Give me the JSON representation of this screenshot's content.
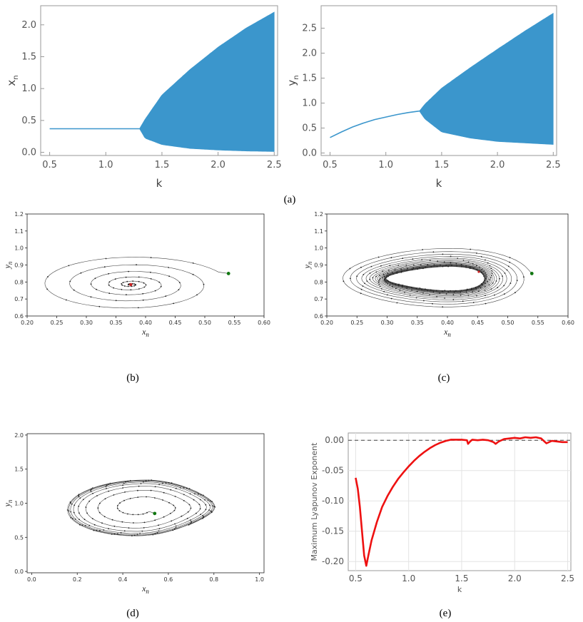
{
  "chart_data": [
    {
      "id": "a1",
      "type": "bifurcation",
      "xlabel": "k",
      "ylabel": "x",
      "ylabel_sub": "n",
      "xlim": [
        0.42,
        2.53
      ],
      "ylim": [
        -0.05,
        2.3
      ],
      "xticks": [
        "0.5",
        "1.0",
        "1.5",
        "2.0",
        "2.5"
      ],
      "yticks": [
        "0.0",
        "0.5",
        "1.0",
        "1.5",
        "2.0"
      ],
      "k_bifurcation": 1.3,
      "fixed_branch": [
        [
          0.5,
          0.37
        ],
        [
          1.3,
          0.37
        ]
      ],
      "band_upper": [
        [
          1.3,
          0.37
        ],
        [
          1.35,
          0.52
        ],
        [
          1.5,
          0.9
        ],
        [
          1.75,
          1.3
        ],
        [
          2.0,
          1.65
        ],
        [
          2.25,
          1.95
        ],
        [
          2.5,
          2.2
        ]
      ],
      "band_lower": [
        [
          1.3,
          0.37
        ],
        [
          1.35,
          0.22
        ],
        [
          1.5,
          0.12
        ],
        [
          1.75,
          0.06
        ],
        [
          2.0,
          0.035
        ],
        [
          2.25,
          0.02
        ],
        [
          2.5,
          0.012
        ]
      ],
      "color": "#3b96cc"
    },
    {
      "id": "a2",
      "type": "bifurcation",
      "xlabel": "k",
      "ylabel": "y",
      "ylabel_sub": "n",
      "xlim": [
        0.42,
        2.53
      ],
      "ylim": [
        -0.05,
        2.95
      ],
      "xticks": [
        "0.5",
        "1.0",
        "1.5",
        "2.0",
        "2.5"
      ],
      "yticks": [
        "0.0",
        "0.5",
        "1.0",
        "1.5",
        "2.0",
        "2.5"
      ],
      "k_bifurcation": 1.3,
      "fixed_branch": [
        [
          0.5,
          0.31
        ],
        [
          0.6,
          0.42
        ],
        [
          0.7,
          0.52
        ],
        [
          0.8,
          0.6
        ],
        [
          0.9,
          0.67
        ],
        [
          1.0,
          0.72
        ],
        [
          1.1,
          0.77
        ],
        [
          1.2,
          0.81
        ],
        [
          1.3,
          0.84
        ]
      ],
      "band_upper": [
        [
          1.3,
          0.84
        ],
        [
          1.35,
          0.98
        ],
        [
          1.5,
          1.3
        ],
        [
          1.75,
          1.7
        ],
        [
          2.0,
          2.08
        ],
        [
          2.25,
          2.45
        ],
        [
          2.5,
          2.8
        ]
      ],
      "band_lower": [
        [
          1.3,
          0.84
        ],
        [
          1.35,
          0.68
        ],
        [
          1.5,
          0.42
        ],
        [
          1.75,
          0.3
        ],
        [
          2.0,
          0.23
        ],
        [
          2.25,
          0.2
        ],
        [
          2.5,
          0.17
        ]
      ],
      "color": "#3b96cc"
    },
    {
      "id": "b",
      "type": "phase-orbit",
      "behavior": "stable spiral",
      "xlabel": "x",
      "ylabel": "y",
      "xlim": [
        0.2,
        0.6
      ],
      "ylim": [
        0.6,
        1.2
      ],
      "xticks": [
        "0.20",
        "0.25",
        "0.30",
        "0.35",
        "0.40",
        "0.45",
        "0.50",
        "0.55",
        "0.60"
      ],
      "yticks": [
        "0.6",
        "0.7",
        "0.8",
        "0.9",
        "1.0",
        "1.1",
        "1.2"
      ],
      "start": [
        0.54,
        0.85
      ],
      "fixed_point": [
        0.375,
        0.785
      ],
      "rx_start": 0.165,
      "ry_start": 0.17,
      "rx_end": 0.004,
      "ry_end": 0.003,
      "turns": 5.5
    },
    {
      "id": "c",
      "type": "phase-orbit",
      "behavior": "converging to limit cycle (outer)",
      "xlabel": "x",
      "ylabel": "y",
      "xlim": [
        0.2,
        0.6
      ],
      "ylim": [
        0.6,
        1.2
      ],
      "xticks": [
        "0.20",
        "0.25",
        "0.30",
        "0.35",
        "0.40",
        "0.45",
        "0.50",
        "0.55",
        "0.60"
      ],
      "yticks": [
        "0.6",
        "0.7",
        "0.8",
        "0.9",
        "1.0",
        "1.1",
        "1.2"
      ],
      "start": [
        0.54,
        0.85
      ],
      "center": [
        0.38,
        0.82
      ],
      "rx_start": 0.16,
      "ry_start": 0.18,
      "rx_end": 0.078,
      "ry_end": 0.062,
      "turns": 18
    },
    {
      "id": "d",
      "type": "phase-orbit",
      "behavior": "outward spiral to limit cycle",
      "xlabel": "x",
      "ylabel": "y",
      "xlim": [
        -0.02,
        1.02
      ],
      "ylim": [
        -0.02,
        2.02
      ],
      "xticks": [
        "0.0",
        "0.2",
        "0.4",
        "0.6",
        "0.8",
        "1.0"
      ],
      "yticks": [
        "0.0",
        "0.5",
        "1.0",
        "1.5",
        "2.0"
      ],
      "start": [
        0.54,
        0.85
      ],
      "center": [
        0.45,
        0.9
      ],
      "turns": 8
    },
    {
      "id": "e",
      "type": "line",
      "xlabel": "k",
      "ylabel": "Maximum Lyapunov Exponent",
      "xlim": [
        0.43,
        2.53
      ],
      "ylim": [
        -0.215,
        0.012
      ],
      "xticks": [
        "0.5",
        "1.0",
        "1.5",
        "2.0",
        "2.5"
      ],
      "yticks": [
        "0.00",
        "-0.05",
        "-0.10",
        "-0.15",
        "-0.20"
      ],
      "x": [
        0.5,
        0.52,
        0.54,
        0.56,
        0.58,
        0.6,
        0.62,
        0.65,
        0.7,
        0.75,
        0.8,
        0.85,
        0.9,
        0.95,
        1.0,
        1.05,
        1.1,
        1.15,
        1.2,
        1.25,
        1.3,
        1.35,
        1.4,
        1.45,
        1.5,
        1.55,
        1.56,
        1.58,
        1.6,
        1.65,
        1.7,
        1.75,
        1.8,
        1.82,
        1.85,
        1.9,
        1.95,
        2.0,
        2.05,
        2.1,
        2.15,
        2.2,
        2.25,
        2.28,
        2.3,
        2.35,
        2.4,
        2.45,
        2.5
      ],
      "y": [
        -0.062,
        -0.08,
        -0.11,
        -0.15,
        -0.19,
        -0.207,
        -0.19,
        -0.165,
        -0.135,
        -0.11,
        -0.092,
        -0.077,
        -0.064,
        -0.053,
        -0.043,
        -0.034,
        -0.026,
        -0.019,
        -0.013,
        -0.008,
        -0.004,
        -0.001,
        0.001,
        0.001,
        0.001,
        0.0,
        -0.006,
        -0.002,
        0.001,
        0.0,
        0.001,
        0.0,
        -0.003,
        -0.006,
        -0.002,
        0.002,
        0.003,
        0.004,
        0.003,
        0.005,
        0.004,
        0.005,
        0.003,
        -0.002,
        -0.005,
        -0.001,
        -0.002,
        -0.003,
        -0.003
      ],
      "reference_line": 0.0,
      "color": "#ee1111"
    }
  ],
  "captions": {
    "a": "(a)",
    "b": "(b)",
    "c": "(c)",
    "d": "(d)",
    "e": "(e)"
  }
}
